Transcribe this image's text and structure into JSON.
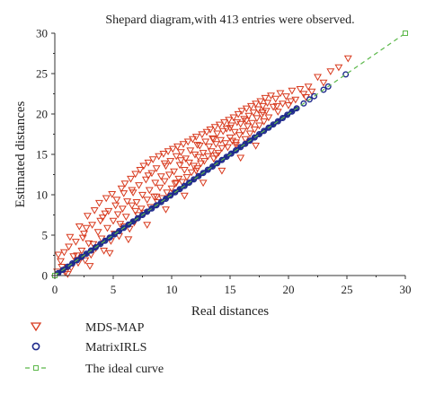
{
  "chart_data": {
    "type": "scatter",
    "title": "Shepard diagram,with 413 entries were observed.",
    "xlabel": "Real distances",
    "ylabel": "Estimated distances",
    "xlim": [
      0,
      30
    ],
    "ylim": [
      0,
      30
    ],
    "xticks": [
      "0",
      "5",
      "10",
      "15",
      "20",
      "25",
      "30"
    ],
    "yticks": [
      "0",
      "5",
      "10",
      "15",
      "20",
      "25",
      "30"
    ],
    "grid": false,
    "legend_position": "bottom-left, below plot",
    "colors": {
      "mds": "#d83a1e",
      "irls": "#1f2a8c",
      "ideal": "#5cb84a",
      "axis": "#333333"
    },
    "series": [
      {
        "name": "MDS-MAP",
        "marker": "triangle-down-open",
        "points": [
          [
            0.2,
            0.5
          ],
          [
            0.5,
            1.8
          ],
          [
            0.8,
            2.9
          ],
          [
            0.9,
            0.4
          ],
          [
            1.2,
            3.6
          ],
          [
            1.4,
            1.0
          ],
          [
            1.6,
            2.4
          ],
          [
            1.8,
            4.2
          ],
          [
            2.0,
            1.6
          ],
          [
            2.1,
            6.1
          ],
          [
            2.3,
            3.1
          ],
          [
            2.5,
            5.2
          ],
          [
            2.6,
            1.9
          ],
          [
            2.8,
            7.4
          ],
          [
            2.9,
            4.0
          ],
          [
            3.1,
            2.6
          ],
          [
            3.2,
            6.3
          ],
          [
            3.4,
            8.1
          ],
          [
            3.5,
            3.4
          ],
          [
            3.7,
            5.4
          ],
          [
            3.8,
            9.0
          ],
          [
            4.0,
            4.6
          ],
          [
            4.1,
            7.2
          ],
          [
            4.2,
            3.1
          ],
          [
            4.4,
            9.6
          ],
          [
            4.5,
            5.9
          ],
          [
            4.6,
            8.0
          ],
          [
            4.8,
            4.3
          ],
          [
            4.9,
            10.1
          ],
          [
            5.0,
            6.8
          ],
          [
            5.1,
            5.2
          ],
          [
            5.3,
            9.4
          ],
          [
            5.4,
            7.6
          ],
          [
            5.5,
            4.9
          ],
          [
            5.7,
            10.8
          ],
          [
            5.8,
            8.3
          ],
          [
            5.9,
            6.1
          ],
          [
            6.0,
            11.4
          ],
          [
            6.1,
            7.3
          ],
          [
            6.2,
            9.2
          ],
          [
            6.4,
            5.8
          ],
          [
            6.5,
            12.0
          ],
          [
            6.6,
            8.7
          ],
          [
            6.7,
            10.3
          ],
          [
            6.8,
            6.6
          ],
          [
            6.9,
            12.6
          ],
          [
            7.0,
            9.1
          ],
          [
            7.1,
            7.5
          ],
          [
            7.2,
            11.2
          ],
          [
            7.3,
            13.1
          ],
          [
            7.4,
            8.3
          ],
          [
            7.5,
            10.0
          ],
          [
            7.6,
            13.6
          ],
          [
            7.7,
            7.8
          ],
          [
            7.8,
            11.9
          ],
          [
            7.9,
            9.4
          ],
          [
            8.0,
            14.0
          ],
          [
            8.1,
            10.6
          ],
          [
            8.2,
            8.5
          ],
          [
            8.3,
            12.7
          ],
          [
            8.4,
            14.4
          ],
          [
            8.5,
            9.8
          ],
          [
            8.6,
            11.5
          ],
          [
            8.7,
            13.3
          ],
          [
            8.8,
            9.1
          ],
          [
            8.9,
            14.8
          ],
          [
            9.0,
            10.9
          ],
          [
            9.1,
            12.3
          ],
          [
            9.2,
            9.6
          ],
          [
            9.3,
            15.1
          ],
          [
            9.4,
            11.7
          ],
          [
            9.5,
            13.6
          ],
          [
            9.6,
            10.3
          ],
          [
            9.7,
            15.4
          ],
          [
            9.8,
            12.5
          ],
          [
            9.9,
            14.2
          ],
          [
            10.0,
            10.8
          ],
          [
            10.1,
            15.7
          ],
          [
            10.2,
            12.9
          ],
          [
            10.3,
            11.4
          ],
          [
            10.4,
            14.8
          ],
          [
            10.5,
            16.0
          ],
          [
            10.6,
            12.0
          ],
          [
            10.7,
            13.7
          ],
          [
            10.8,
            15.3
          ],
          [
            10.9,
            11.6
          ],
          [
            11.0,
            16.3
          ],
          [
            11.1,
            13.1
          ],
          [
            11.2,
            14.5
          ],
          [
            11.3,
            12.2
          ],
          [
            11.4,
            16.6
          ],
          [
            11.5,
            14.0
          ],
          [
            11.6,
            15.5
          ],
          [
            11.7,
            12.8
          ],
          [
            11.8,
            16.9
          ],
          [
            11.9,
            13.6
          ],
          [
            12.0,
            15.0
          ],
          [
            12.1,
            17.2
          ],
          [
            12.2,
            13.3
          ],
          [
            12.3,
            14.7
          ],
          [
            12.4,
            16.1
          ],
          [
            12.5,
            13.9
          ],
          [
            12.6,
            17.5
          ],
          [
            12.7,
            15.2
          ],
          [
            12.8,
            14.2
          ],
          [
            12.9,
            16.6
          ],
          [
            13.0,
            17.8
          ],
          [
            13.1,
            14.8
          ],
          [
            13.2,
            16.0
          ],
          [
            13.3,
            18.1
          ],
          [
            13.4,
            15.4
          ],
          [
            13.5,
            17.0
          ],
          [
            13.6,
            14.5
          ],
          [
            13.7,
            18.4
          ],
          [
            13.8,
            16.3
          ],
          [
            13.9,
            17.6
          ],
          [
            14.0,
            15.2
          ],
          [
            14.1,
            18.7
          ],
          [
            14.2,
            16.8
          ],
          [
            14.3,
            15.8
          ],
          [
            14.4,
            17.9
          ],
          [
            14.5,
            19.0
          ],
          [
            14.6,
            16.4
          ],
          [
            14.7,
            18.2
          ],
          [
            14.8,
            15.9
          ],
          [
            14.9,
            19.3
          ],
          [
            15.0,
            17.1
          ],
          [
            15.1,
            18.6
          ],
          [
            15.2,
            16.7
          ],
          [
            15.3,
            19.6
          ],
          [
            15.4,
            17.8
          ],
          [
            15.5,
            16.2
          ],
          [
            15.6,
            19.0
          ],
          [
            15.7,
            20.0
          ],
          [
            15.8,
            17.4
          ],
          [
            15.9,
            18.8
          ],
          [
            16.0,
            20.4
          ],
          [
            16.1,
            17.9
          ],
          [
            16.2,
            19.4
          ],
          [
            16.3,
            16.9
          ],
          [
            16.4,
            20.7
          ],
          [
            16.5,
            18.5
          ],
          [
            16.6,
            19.8
          ],
          [
            16.7,
            17.6
          ],
          [
            16.8,
            21.0
          ],
          [
            16.9,
            18.9
          ],
          [
            17.0,
            20.2
          ],
          [
            17.1,
            18.1
          ],
          [
            17.2,
            21.3
          ],
          [
            17.3,
            19.5
          ],
          [
            17.4,
            20.6
          ],
          [
            17.5,
            18.6
          ],
          [
            17.6,
            21.6
          ],
          [
            17.7,
            19.9
          ],
          [
            17.8,
            21.0
          ],
          [
            17.9,
            19.1
          ],
          [
            18.0,
            22.0
          ],
          [
            18.1,
            20.4
          ],
          [
            18.2,
            21.4
          ],
          [
            18.3,
            19.6
          ],
          [
            18.5,
            22.3
          ],
          [
            18.7,
            20.9
          ],
          [
            18.9,
            21.9
          ],
          [
            19.1,
            20.3
          ],
          [
            19.3,
            22.6
          ],
          [
            19.5,
            21.3
          ],
          [
            19.8,
            22.2
          ],
          [
            20.0,
            21.1
          ],
          [
            20.3,
            22.9
          ],
          [
            20.6,
            21.8
          ],
          [
            21.0,
            23.1
          ],
          [
            21.3,
            22.5
          ],
          [
            21.7,
            23.4
          ],
          [
            22.0,
            22.8
          ],
          [
            22.5,
            24.6
          ],
          [
            23.0,
            23.9
          ],
          [
            23.6,
            25.3
          ],
          [
            24.3,
            25.8
          ],
          [
            25.1,
            26.9
          ],
          [
            1.1,
            0.2
          ],
          [
            3.0,
            1.2
          ],
          [
            4.7,
            2.8
          ],
          [
            6.3,
            4.5
          ],
          [
            7.9,
            6.3
          ],
          [
            9.5,
            8.2
          ],
          [
            11.1,
            9.9
          ],
          [
            12.7,
            11.5
          ],
          [
            14.3,
            13.0
          ],
          [
            15.9,
            14.6
          ],
          [
            17.2,
            16.1
          ],
          [
            0.6,
            1.1
          ],
          [
            1.9,
            2.5
          ],
          [
            3.3,
            3.9
          ],
          [
            5.6,
            6.4
          ],
          [
            6.9,
            8.0
          ],
          [
            8.7,
            9.8
          ],
          [
            10.4,
            11.5
          ],
          [
            12.1,
            13.0
          ],
          [
            13.8,
            14.9
          ],
          [
            15.5,
            16.5
          ],
          [
            2.4,
            4.7
          ],
          [
            3.9,
            6.8
          ],
          [
            5.2,
            8.7
          ],
          [
            6.6,
            10.6
          ],
          [
            8.0,
            12.4
          ],
          [
            9.4,
            13.9
          ],
          [
            10.8,
            14.3
          ],
          [
            12.2,
            16.2
          ],
          [
            13.6,
            16.9
          ],
          [
            15.0,
            18.3
          ],
          [
            16.4,
            19.2
          ],
          [
            17.8,
            20.2
          ],
          [
            19.0,
            21.0
          ],
          [
            20.2,
            21.6
          ],
          [
            21.5,
            22.1
          ],
          [
            0.3,
            2.6
          ],
          [
            1.3,
            4.8
          ],
          [
            2.7,
            5.9
          ],
          [
            4.3,
            7.7
          ],
          [
            5.9,
            10.2
          ]
        ]
      },
      {
        "name": "MatrixIRLS",
        "marker": "circle-open",
        "points": [
          [
            0.3,
            0.3
          ],
          [
            0.7,
            0.7
          ],
          [
            1.1,
            1.1
          ],
          [
            1.5,
            1.5
          ],
          [
            1.9,
            1.9
          ],
          [
            2.3,
            2.3
          ],
          [
            2.7,
            2.7
          ],
          [
            3.1,
            3.1
          ],
          [
            3.5,
            3.5
          ],
          [
            3.9,
            3.9
          ],
          [
            4.3,
            4.3
          ],
          [
            4.7,
            4.7
          ],
          [
            5.1,
            5.1
          ],
          [
            5.5,
            5.5
          ],
          [
            5.9,
            5.9
          ],
          [
            6.3,
            6.3
          ],
          [
            6.7,
            6.7
          ],
          [
            7.1,
            7.1
          ],
          [
            7.5,
            7.5
          ],
          [
            7.9,
            7.9
          ],
          [
            8.3,
            8.3
          ],
          [
            8.7,
            8.7
          ],
          [
            9.1,
            9.1
          ],
          [
            9.5,
            9.5
          ],
          [
            9.9,
            9.9
          ],
          [
            10.3,
            10.3
          ],
          [
            10.7,
            10.7
          ],
          [
            11.1,
            11.1
          ],
          [
            11.5,
            11.5
          ],
          [
            11.9,
            11.9
          ],
          [
            12.3,
            12.3
          ],
          [
            12.7,
            12.7
          ],
          [
            13.1,
            13.1
          ],
          [
            13.5,
            13.5
          ],
          [
            13.9,
            13.9
          ],
          [
            14.3,
            14.3
          ],
          [
            14.7,
            14.7
          ],
          [
            15.1,
            15.1
          ],
          [
            15.5,
            15.5
          ],
          [
            15.9,
            15.9
          ],
          [
            16.3,
            16.3
          ],
          [
            16.7,
            16.7
          ],
          [
            17.1,
            17.1
          ],
          [
            17.5,
            17.5
          ],
          [
            17.9,
            17.9
          ],
          [
            18.3,
            18.3
          ],
          [
            18.7,
            18.7
          ],
          [
            19.1,
            19.1
          ],
          [
            19.5,
            19.5
          ],
          [
            19.9,
            19.9
          ],
          [
            20.3,
            20.3
          ],
          [
            20.7,
            20.7
          ],
          [
            21.3,
            21.3
          ],
          [
            21.8,
            21.8
          ],
          [
            22.2,
            22.2
          ],
          [
            23.0,
            23.0
          ],
          [
            23.4,
            23.4
          ],
          [
            24.9,
            24.9
          ]
        ]
      },
      {
        "name": "The ideal curve",
        "marker": "square-open",
        "line": "dashed",
        "points": [
          [
            0,
            0
          ],
          [
            30,
            30
          ]
        ]
      }
    ]
  }
}
